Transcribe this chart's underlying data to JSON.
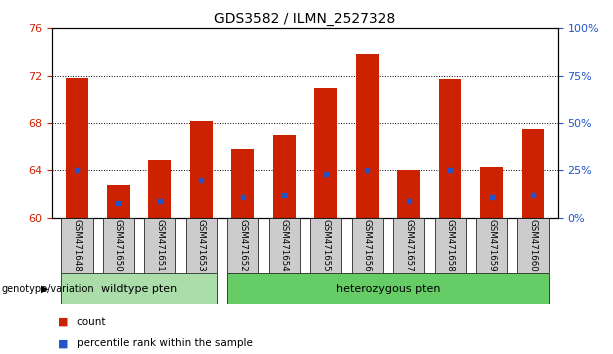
{
  "title": "GDS3582 / ILMN_2527328",
  "categories": [
    "GSM471648",
    "GSM471650",
    "GSM471651",
    "GSM471653",
    "GSM471652",
    "GSM471654",
    "GSM471655",
    "GSM471656",
    "GSM471657",
    "GSM471658",
    "GSM471659",
    "GSM471660"
  ],
  "count_values": [
    71.8,
    62.8,
    64.9,
    68.2,
    65.8,
    67.0,
    71.0,
    73.8,
    64.0,
    71.7,
    64.3,
    67.5
  ],
  "percentile_values": [
    25,
    8,
    9,
    20,
    11,
    12,
    23,
    25,
    9,
    25,
    11,
    12
  ],
  "ylim_left": [
    60,
    76
  ],
  "ylim_right": [
    0,
    100
  ],
  "yticks_left": [
    60,
    64,
    68,
    72,
    76
  ],
  "yticks_right": [
    0,
    25,
    50,
    75,
    100
  ],
  "ytick_labels_right": [
    "0%",
    "25%",
    "50%",
    "75%",
    "100%"
  ],
  "bar_color": "#cc2200",
  "marker_color": "#2255cc",
  "bar_width": 0.55,
  "wildtype_indices": [
    0,
    1,
    2,
    3
  ],
  "hetero_indices": [
    4,
    5,
    6,
    7,
    8,
    9,
    10,
    11
  ],
  "wildtype_label": "wildtype pten",
  "hetero_label": "heterozygous pten",
  "genotype_label": "genotype/variation",
  "legend_count_label": "count",
  "legend_percentile_label": "percentile rank within the sample",
  "title_fontsize": 10,
  "tick_fontsize": 8,
  "axis_color_left": "#cc2200",
  "axis_color_right": "#2255cc",
  "cell_bg": "#cccccc",
  "wildtype_bg": "#aaddaa",
  "hetero_bg": "#66cc66"
}
